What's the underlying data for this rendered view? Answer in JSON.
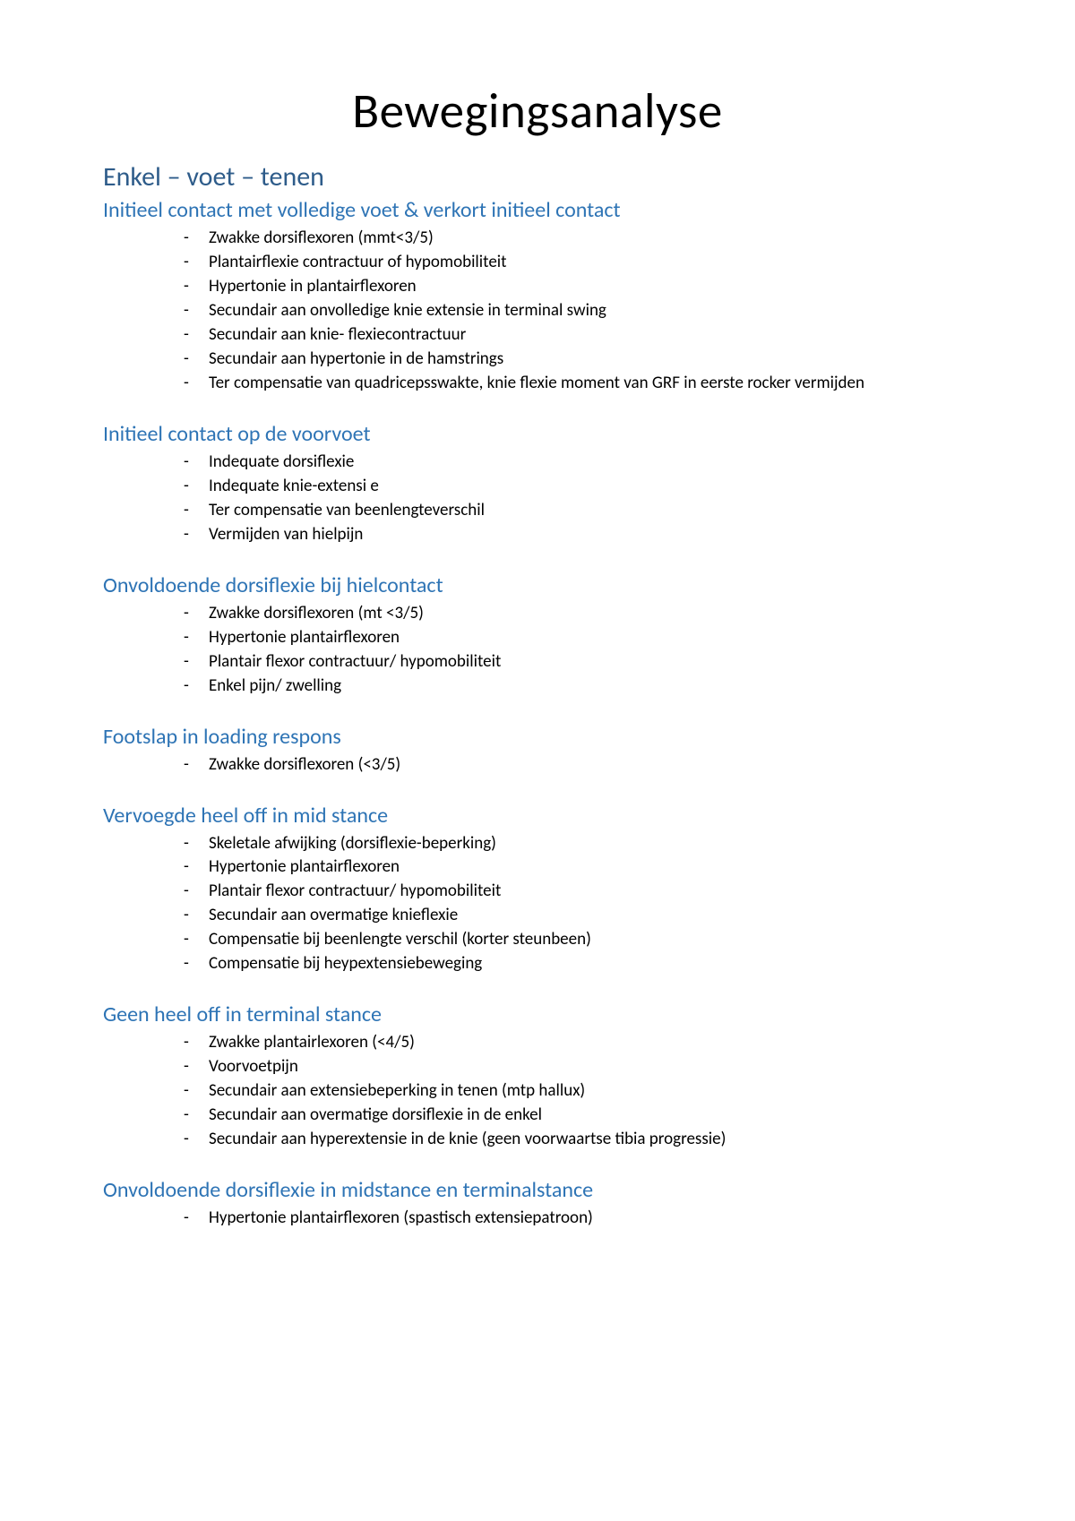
{
  "title": "Bewegingsanalyse",
  "colors": {
    "h1": "#2e5c8a",
    "h2": "#2e74b5",
    "text": "#000000",
    "background": "#ffffff"
  },
  "typography": {
    "title_fontsize": 55,
    "h1_fontsize": 30,
    "h2_fontsize": 24,
    "body_fontsize": 19,
    "font_family": "Calibri"
  },
  "h1": "Enkel – voet – tenen",
  "sections": [
    {
      "heading": "Initieel contact met volledige voet & verkort initieel contact",
      "items": [
        "Zwakke dorsiflexoren (mmt<3/5)",
        "Plantairflexie contractuur of hypomobiliteit",
        "Hypertonie in plantairflexoren",
        "Secundair aan onvolledige knie extensie in terminal swing",
        "Secundair aan knie- flexiecontractuur",
        "Secundair aan hypertonie in de hamstrings",
        "Ter compensatie van quadricepsswakte, knie flexie moment van GRF in eerste rocker vermijden"
      ]
    },
    {
      "heading": "Initieel contact op de voorvoet",
      "items": [
        "Indequate dorsiflexie",
        "Indequate knie-extensi e",
        "Ter compensatie van beenlengteverschil",
        "Vermijden van hielpijn"
      ]
    },
    {
      "heading": "Onvoldoende dorsiflexie bij hielcontact",
      "items": [
        "Zwakke dorsiflexoren (mt <3/5)",
        "Hypertonie plantairflexoren",
        "Plantair flexor contractuur/ hypomobiliteit",
        "Enkel pijn/ zwelling"
      ]
    },
    {
      "heading": "Footslap in loading respons",
      "items": [
        "Zwakke dorsiflexoren (<3/5)"
      ]
    },
    {
      "heading": "Vervoegde heel off in mid stance",
      "items": [
        "Skeletale afwijking (dorsiflexie-beperking)",
        "Hypertonie plantairflexoren",
        "Plantair flexor contractuur/ hypomobiliteit",
        "Secundair aan overmatige knieflexie",
        "Compensatie bij beenlengte verschil (korter steunbeen)",
        "Compensatie bij heypextensiebeweging"
      ]
    },
    {
      "heading": "Geen heel off in terminal stance",
      "items": [
        "Zwakke plantairlexoren (<4/5)",
        "Voorvoetpijn",
        "Secundair aan extensiebeperking in tenen (mtp hallux)",
        "Secundair aan overmatige dorsiflexie in de enkel",
        "Secundair aan hyperextensie in de knie (geen voorwaartse tibia progressie)"
      ]
    },
    {
      "heading": "Onvoldoende dorsiflexie in midstance en terminalstance",
      "items": [
        "Hypertonie plantairflexoren (spastisch extensiepatroon)"
      ]
    }
  ]
}
